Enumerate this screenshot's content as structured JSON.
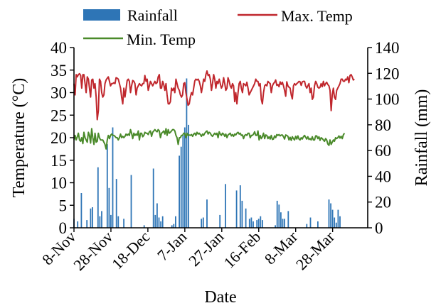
{
  "chart_data": {
    "type": "bar+line",
    "xlabel": "Date",
    "ylabel_left": "Temperature (°C)",
    "ylabel_right": "Rainfall (mm)",
    "ylim_left": [
      0,
      40
    ],
    "ylim_right": [
      0,
      140
    ],
    "yticks_left": [
      0,
      5,
      10,
      15,
      20,
      25,
      30,
      35,
      40
    ],
    "yticks_right": [
      0,
      20,
      40,
      60,
      80,
      100,
      120,
      140
    ],
    "x_start_date": "2020-11-08",
    "x_end_date": "2021-04-16",
    "x_tick_labels": [
      "8-Nov",
      "28-Nov",
      "18-Dec",
      "7-Jan",
      "27-Jan",
      "16-Feb",
      "8-Mar",
      "28-Mar"
    ],
    "x_tick_dates": [
      "2020-11-08",
      "2020-11-28",
      "2020-12-18",
      "2021-01-07",
      "2021-01-27",
      "2021-02-16",
      "2021-03-08",
      "2021-03-28"
    ],
    "legend": [
      {
        "name": "Rainfall",
        "kind": "bar",
        "color": "#2e75b6"
      },
      {
        "name": "Max. Temp",
        "kind": "line",
        "color": "#c0272d"
      },
      {
        "name": "Min. Temp",
        "kind": "line",
        "color": "#4a8a2a"
      }
    ],
    "legend_position": "top",
    "series": [
      {
        "name": "Rainfall",
        "type": "bar",
        "axis": "right",
        "color": "#2e75b6",
        "points": [
          [
            "2020-11-08",
            7
          ],
          [
            "2020-11-10",
            5
          ],
          [
            "2020-11-12",
            27
          ],
          [
            "2020-11-15",
            6
          ],
          [
            "2020-11-17",
            15
          ],
          [
            "2020-11-18",
            16
          ],
          [
            "2020-11-21",
            47
          ],
          [
            "2020-11-22",
            9
          ],
          [
            "2020-11-23",
            13
          ],
          [
            "2020-11-26",
            65
          ],
          [
            "2020-11-27",
            31
          ],
          [
            "2020-11-28",
            10
          ],
          [
            "2020-11-29",
            78
          ],
          [
            "2020-12-01",
            38
          ],
          [
            "2020-12-02",
            9
          ],
          [
            "2020-12-05",
            7
          ],
          [
            "2020-12-09",
            41
          ],
          [
            "2020-12-16",
            2
          ],
          [
            "2020-12-21",
            46
          ],
          [
            "2020-12-22",
            10
          ],
          [
            "2020-12-23",
            19
          ],
          [
            "2020-12-24",
            8
          ],
          [
            "2020-12-25",
            5
          ],
          [
            "2020-12-26",
            9
          ],
          [
            "2020-12-31",
            2
          ],
          [
            "2021-01-01",
            3
          ],
          [
            "2021-01-02",
            9
          ],
          [
            "2021-01-04",
            56
          ],
          [
            "2021-01-05",
            63
          ],
          [
            "2021-01-06",
            72
          ],
          [
            "2021-01-07",
            78
          ],
          [
            "2021-01-08",
            116
          ],
          [
            "2021-01-09",
            80
          ],
          [
            "2021-01-16",
            7
          ],
          [
            "2021-01-17",
            8
          ],
          [
            "2021-01-19",
            22
          ],
          [
            "2021-01-26",
            10
          ],
          [
            "2021-01-29",
            34
          ],
          [
            "2021-02-04",
            29
          ],
          [
            "2021-02-06",
            33
          ],
          [
            "2021-02-07",
            21
          ],
          [
            "2021-02-09",
            15
          ],
          [
            "2021-02-11",
            7
          ],
          [
            "2021-02-12",
            8
          ],
          [
            "2021-02-13",
            5
          ],
          [
            "2021-02-15",
            6
          ],
          [
            "2021-02-16",
            7
          ],
          [
            "2021-02-17",
            9
          ],
          [
            "2021-02-18",
            6
          ],
          [
            "2021-02-25",
            2
          ],
          [
            "2021-02-26",
            21
          ],
          [
            "2021-02-27",
            18
          ],
          [
            "2021-02-28",
            12
          ],
          [
            "2021-03-01",
            7
          ],
          [
            "2021-03-02",
            7
          ],
          [
            "2021-03-04",
            13
          ],
          [
            "2021-03-14",
            3
          ],
          [
            "2021-03-16",
            8
          ],
          [
            "2021-03-20",
            5
          ],
          [
            "2021-03-26",
            22
          ],
          [
            "2021-03-27",
            19
          ],
          [
            "2021-03-28",
            14
          ],
          [
            "2021-03-29",
            8
          ],
          [
            "2021-03-30",
            4
          ],
          [
            "2021-03-31",
            14
          ],
          [
            "2021-04-01",
            9
          ]
        ]
      },
      {
        "name": "Max. Temp",
        "type": "line",
        "axis": "left",
        "color": "#c0272d",
        "values": [
          32,
          29.5,
          34,
          33.5,
          34,
          34.2,
          33.8,
          31,
          34,
          34,
          32,
          30,
          33.5,
          33,
          31,
          29,
          32.8,
          33,
          31,
          32,
          29,
          24,
          26,
          33,
          32.5,
          30,
          29,
          29.5,
          32,
          32.8,
          33.2,
          33.5,
          32.5,
          31.5,
          32,
          32,
          32.2,
          32,
          33.3,
          33.2,
          33,
          32,
          31,
          29,
          27.5,
          31,
          29,
          30.8,
          32.7,
          33,
          32.5,
          30,
          31.5,
          32.7,
          32.5,
          32,
          29.5,
          31,
          31.5,
          32,
          31.7,
          31.5,
          32,
          32,
          33.8,
          32.5,
          33,
          30.5,
          31.5,
          32.5,
          32,
          31.5,
          32,
          32.5,
          32,
          32.2,
          33.5,
          34,
          31,
          31,
          32.5,
          31.8,
          30.5,
          32,
          29.5,
          27.5,
          27.5,
          28,
          31,
          30.5,
          31,
          30,
          33,
          32,
          31,
          30.5,
          29.5,
          29,
          29.5,
          32,
          32.2,
          30,
          28.5,
          27.2,
          27.5,
          29,
          30,
          29.5,
          31,
          32.6,
          33,
          32.8,
          33,
          32.5,
          31.5,
          30,
          31.5,
          33,
          32.5,
          34,
          34.8,
          33.8,
          34,
          33,
          30.5,
          32,
          34,
          33,
          31,
          32.5,
          32,
          33,
          32,
          31,
          31.5,
          33.3,
          32,
          30.5,
          31,
          33.3,
          32.5,
          31.5,
          31,
          32,
          31.5,
          28,
          30,
          27.5,
          30,
          32,
          32.5,
          31,
          30,
          32,
          31.8,
          31.5,
          32.3,
          31,
          29.5,
          30,
          30.5,
          31,
          31.5,
          32,
          33,
          32.5,
          32.5,
          31.5,
          32,
          28.5,
          27.5,
          30,
          31.5,
          31.8,
          31.5,
          32.5,
          32.2,
          32,
          30,
          31.5,
          32,
          32.3,
          32.8,
          31.6,
          31.8,
          31.3,
          32.4,
          31.8,
          32.3,
          31.5,
          30.5,
          29.2,
          32.4,
          31.5,
          31.2,
          31,
          29.5,
          28.6,
          31.5,
          32,
          31.7,
          32,
          32.2,
          32.5,
          32.4,
          31.6,
          32.4,
          32.5,
          32.5,
          31.5,
          31,
          31.5,
          32,
          30,
          31,
          28.5,
          29,
          31.5,
          32.5,
          32,
          31.2,
          31,
          31.2,
          32,
          31.3,
          32.5,
          31.5,
          32,
          32.3,
          31.8,
          31.5,
          30.5,
          26,
          29.5,
          31,
          29,
          28.5,
          30.5,
          31,
          31.5,
          32,
          33,
          33,
          32.5,
          32.5,
          33,
          32.8,
          33.5,
          32.2,
          33.8,
          34,
          33.5,
          32.8,
          33
        ],
        "x_start": "2020-11-08",
        "x_step_days": 0.6
      },
      {
        "name": "Min. Temp",
        "type": "line",
        "axis": "left",
        "color": "#4a8a2a",
        "values": [
          19.5,
          20.5,
          19.5,
          20.2,
          21,
          19.5,
          19.2,
          20,
          18.7,
          21.2,
          20,
          19.5,
          19,
          21.2,
          20.5,
          18.8,
          22,
          20,
          18.5,
          21,
          19,
          19.2,
          21,
          20,
          19.5,
          19.5,
          19.5,
          19,
          18.5,
          17.5,
          19.5,
          20.5,
          19.8,
          20.5,
          20.8,
          20.5,
          20.5,
          20.3,
          20,
          20,
          19.5,
          20,
          20.8,
          20,
          20.3,
          20,
          20.3,
          20.8,
          20.5,
          20.8,
          20.5,
          21.8,
          21,
          19.8,
          21,
          20.5,
          20.8,
          20.5,
          21.5,
          19.5,
          21,
          21,
          20.2,
          20.5,
          21.2,
          21,
          21,
          20.7,
          21.3,
          21.5,
          20.3,
          21.2,
          21.5,
          21.8,
          21.5,
          21.3,
          21.8,
          21.5,
          20,
          21,
          21.2,
          21.5,
          20.8,
          22,
          20.5,
          21.8,
          21,
          21.2,
          21.5,
          21.8,
          21.8,
          21.5,
          20.5,
          20,
          18.5,
          20,
          20,
          20.5,
          20.5,
          21,
          21,
          20,
          21,
          20.5,
          20.6,
          20.5,
          20.7,
          20.3,
          20.8,
          21,
          20.5,
          21.2,
          20.8,
          21,
          20.7,
          20.3,
          20.8,
          20.5,
          21,
          21.3,
          21.5,
          20.8,
          21.2,
          21,
          20.5,
          20.3,
          20.7,
          21,
          20.7,
          21,
          20,
          21.3,
          20.8,
          20.5,
          21,
          20.8,
          20.3,
          20.8,
          20,
          20.6,
          20.8,
          21,
          20.4,
          20.7,
          20.3,
          20.8,
          20.6,
          21,
          21.2,
          20.8,
          21,
          20.5,
          20.6,
          19.8,
          20.5,
          20.7,
          20.5,
          21,
          21,
          20,
          20.5,
          20.5,
          20.8,
          21.3,
          20.5,
          20.5,
          21.5,
          19.5,
          20.5,
          19.8,
          20.2,
          21,
          19.8,
          20.6,
          20.5,
          19.8,
          20.2,
          19.7,
          20.5,
          19.6,
          19.7,
          20.4,
          20,
          20.7,
          20.5,
          20.7,
          20.4,
          20.6,
          20.6,
          20.2,
          19.7,
          20.6,
          20.5,
          20.3,
          19.5,
          20.1,
          19.4,
          20.2,
          19.8,
          19.5,
          20.3,
          19.7,
          20.4,
          19.7,
          19.5,
          20,
          19.7,
          20.2,
          20.5,
          20.1,
          19.7,
          20.2,
          19.6,
          19.8,
          19.5,
          20.2,
          19.5,
          19.5,
          20.4,
          20.4,
          19.8,
          20.2,
          19.4,
          20,
          19.8,
          19.5,
          19.2,
          19.8,
          19.5,
          18.6,
          18.3,
          19.5,
          18.5,
          19,
          19.5,
          19.2,
          20,
          19.8,
          20,
          20.4,
          19.9,
          20.3,
          19.8,
          20.6,
          21
        ],
        "x_start": "2020-11-08",
        "x_step_days": 0.6
      }
    ]
  }
}
